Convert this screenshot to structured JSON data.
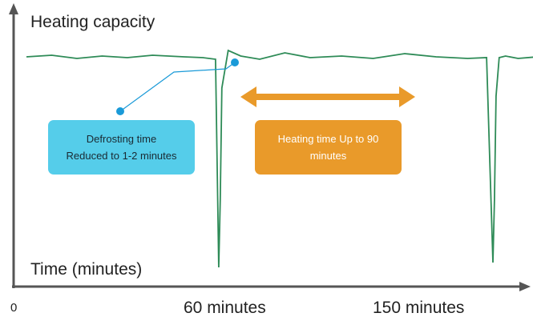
{
  "chart_data": {
    "type": "line",
    "ylabel": "Heating capacity",
    "xlabel": "Time (minutes)",
    "x_ticks": [
      "0",
      "60 minutes",
      "150 minutes"
    ],
    "series": [
      {
        "color": "#2e8b57",
        "x": [
          0,
          8,
          16,
          24,
          32,
          40,
          50,
          56,
          60,
          61,
          61.5,
          62,
          64,
          68,
          74,
          82,
          90,
          100,
          110,
          120,
          130,
          140,
          146,
          148,
          148.5,
          149,
          150,
          152,
          156,
          162
        ]
      }
    ],
    "annotations": {
      "defrost": {
        "line1": "Defrosting time",
        "line2": "Reduced to 1-2 minutes",
        "color": "#55cdea",
        "marker_color": "#1a9ad8"
      },
      "heating": {
        "line1": "Heating time Up to 90",
        "line2": "minutes",
        "color": "#e99a2a"
      }
    },
    "axis_color": "#555555",
    "grid": false
  }
}
